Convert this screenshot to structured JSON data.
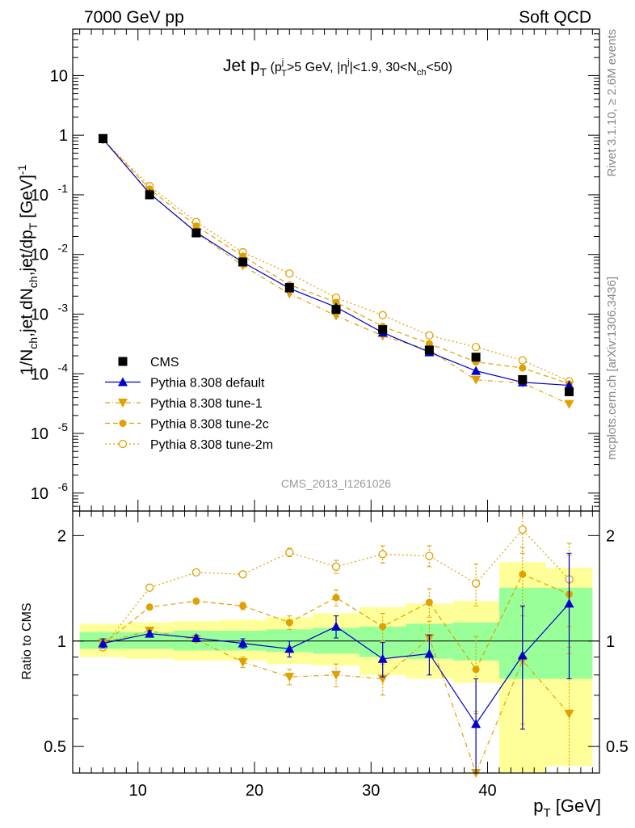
{
  "header": {
    "left": "7000 GeV pp",
    "right": "Soft QCD"
  },
  "side_labels": {
    "rivet": "Rivet 3.1.10, ≥ 2.6M events",
    "mcplots": "mcplots.cern.ch [arXiv:1306.3436]"
  },
  "analysis_id": "CMS_2013_I1261026",
  "colors": {
    "cms": "#000000",
    "default": "#0000cc",
    "tune": "#e0a000",
    "band_inner": "#99ff99",
    "band_outer": "#ffff99"
  },
  "chart_data": [
    {
      "type": "scatter",
      "panel": "main",
      "title": "Jet p_T (p_T^j>5 GeV, |η^j|<1.9, 30<N_ch<50)",
      "ylabel": "1/N_ch,jet dN_ch,jet/dp_T [GeV]^-1",
      "yscale": "log",
      "ylim": [
        5e-07,
        60
      ],
      "xlim": [
        4.4,
        49.6
      ],
      "yticks": [
        {
          "v": 10,
          "label": "10"
        },
        {
          "v": 1,
          "label": "1"
        },
        {
          "v": 0.1,
          "label": "10^-1"
        },
        {
          "v": 0.01,
          "label": "10^-2"
        },
        {
          "v": 0.001,
          "label": "10^-3"
        },
        {
          "v": 0.0001,
          "label": "10^-4"
        },
        {
          "v": 1e-05,
          "label": "10^-5"
        },
        {
          "v": 1e-06,
          "label": "10^-6"
        }
      ],
      "x": [
        7,
        11,
        15,
        19,
        23,
        27,
        31,
        35,
        39,
        43,
        47
      ],
      "series": [
        {
          "name": "CMS",
          "style": "cms",
          "values": [
            0.88,
            0.1,
            0.023,
            0.0075,
            0.0028,
            0.0012,
            0.00055,
            0.00025,
            0.00019,
            8e-05,
            5e-05
          ]
        },
        {
          "name": "Pythia 8.308 default",
          "style": "default",
          "values": [
            0.86,
            0.105,
            0.0235,
            0.0074,
            0.0027,
            0.00131,
            0.00049,
            0.00023,
            0.000112,
            7.2e-05,
            6.4e-05
          ]
        },
        {
          "name": "Pythia 8.308 tune-1",
          "style": "tune1",
          "values": [
            0.85,
            0.107,
            0.0232,
            0.0065,
            0.0022,
            0.00094,
            0.00043,
            0.00025,
            7.9e-05,
            7e-05,
            3.1e-05
          ]
        },
        {
          "name": "Pythia 8.308 tune-2c",
          "style": "tune2c",
          "values": [
            0.85,
            0.125,
            0.03,
            0.0094,
            0.0031,
            0.00158,
            0.00062,
            0.00032,
            0.000158,
            0.000125,
            6.8e-05
          ]
        },
        {
          "name": "Pythia 8.308 tune-2m",
          "style": "tune2m",
          "values": [
            0.84,
            0.14,
            0.035,
            0.0109,
            0.0048,
            0.00188,
            0.00096,
            0.00044,
            0.00028,
            0.000168,
            7.5e-05
          ]
        }
      ]
    },
    {
      "type": "scatter",
      "panel": "ratio",
      "ylabel": "Ratio to CMS",
      "xlabel": "p_T [GeV]",
      "yscale": "log",
      "ylim": [
        0.42,
        2.35
      ],
      "yticks": [
        {
          "v": 0.5,
          "label": "0.5"
        },
        {
          "v": 1,
          "label": "1"
        },
        {
          "v": 2,
          "label": "2"
        }
      ],
      "xticks": [
        10,
        20,
        30,
        40
      ],
      "x": [
        7,
        11,
        15,
        19,
        23,
        27,
        31,
        35,
        39,
        43,
        47
      ],
      "bin_edges": [
        5,
        9,
        13,
        17,
        21,
        25,
        29,
        33,
        37,
        41,
        45,
        49
      ],
      "band_inner": [
        [
          0.95,
          1.06
        ],
        [
          0.95,
          1.06
        ],
        [
          0.94,
          1.07
        ],
        [
          0.94,
          1.07
        ],
        [
          0.93,
          1.08
        ],
        [
          0.92,
          1.09
        ],
        [
          0.9,
          1.1
        ],
        [
          0.89,
          1.12
        ],
        [
          0.88,
          1.13
        ],
        [
          0.78,
          1.42
        ],
        [
          0.78,
          1.42
        ]
      ],
      "band_outer": [
        [
          0.9,
          1.12
        ],
        [
          0.89,
          1.13
        ],
        [
          0.88,
          1.14
        ],
        [
          0.88,
          1.15
        ],
        [
          0.86,
          1.17
        ],
        [
          0.85,
          1.2
        ],
        [
          0.8,
          1.25
        ],
        [
          0.78,
          1.28
        ],
        [
          0.76,
          1.3
        ],
        [
          0.42,
          1.68
        ],
        [
          0.44,
          1.62
        ]
      ],
      "series": [
        {
          "name": "Pythia 8.308 default",
          "style": "default",
          "values": [
            0.985,
            1.05,
            1.02,
            0.985,
            0.95,
            1.1,
            0.89,
            0.92,
            0.58,
            0.91,
            1.28
          ],
          "err": [
            0.03,
            0.02,
            0.02,
            0.03,
            0.05,
            0.08,
            0.1,
            0.12,
            0.2,
            0.35,
            0.5
          ]
        },
        {
          "name": "Pythia 8.308 tune-1",
          "style": "tune1",
          "values": [
            0.99,
            1.07,
            1.01,
            0.87,
            0.79,
            0.8,
            0.78,
            1.02,
            0.42,
            0.88,
            0.62
          ],
          "err": [
            0.02,
            0.02,
            0.02,
            0.03,
            0.04,
            0.06,
            0.08,
            0.12,
            0.2,
            0.3,
            0.3
          ]
        },
        {
          "name": "Pythia 8.308 tune-2c",
          "style": "tune2c",
          "values": [
            0.98,
            1.25,
            1.3,
            1.26,
            1.13,
            1.33,
            1.1,
            1.29,
            0.83,
            1.55,
            1.36
          ],
          "err": [
            0.02,
            0.02,
            0.02,
            0.03,
            0.05,
            0.07,
            0.1,
            0.12,
            0.2,
            0.3,
            0.4
          ]
        },
        {
          "name": "Pythia 8.308 tune-2m",
          "style": "tune2m",
          "values": [
            0.96,
            1.42,
            1.57,
            1.55,
            1.79,
            1.63,
            1.77,
            1.75,
            1.46,
            2.08,
            1.5
          ],
          "err": [
            0.02,
            0.02,
            0.02,
            0.03,
            0.05,
            0.07,
            0.1,
            0.12,
            0.2,
            0.3,
            0.4
          ]
        }
      ]
    }
  ]
}
